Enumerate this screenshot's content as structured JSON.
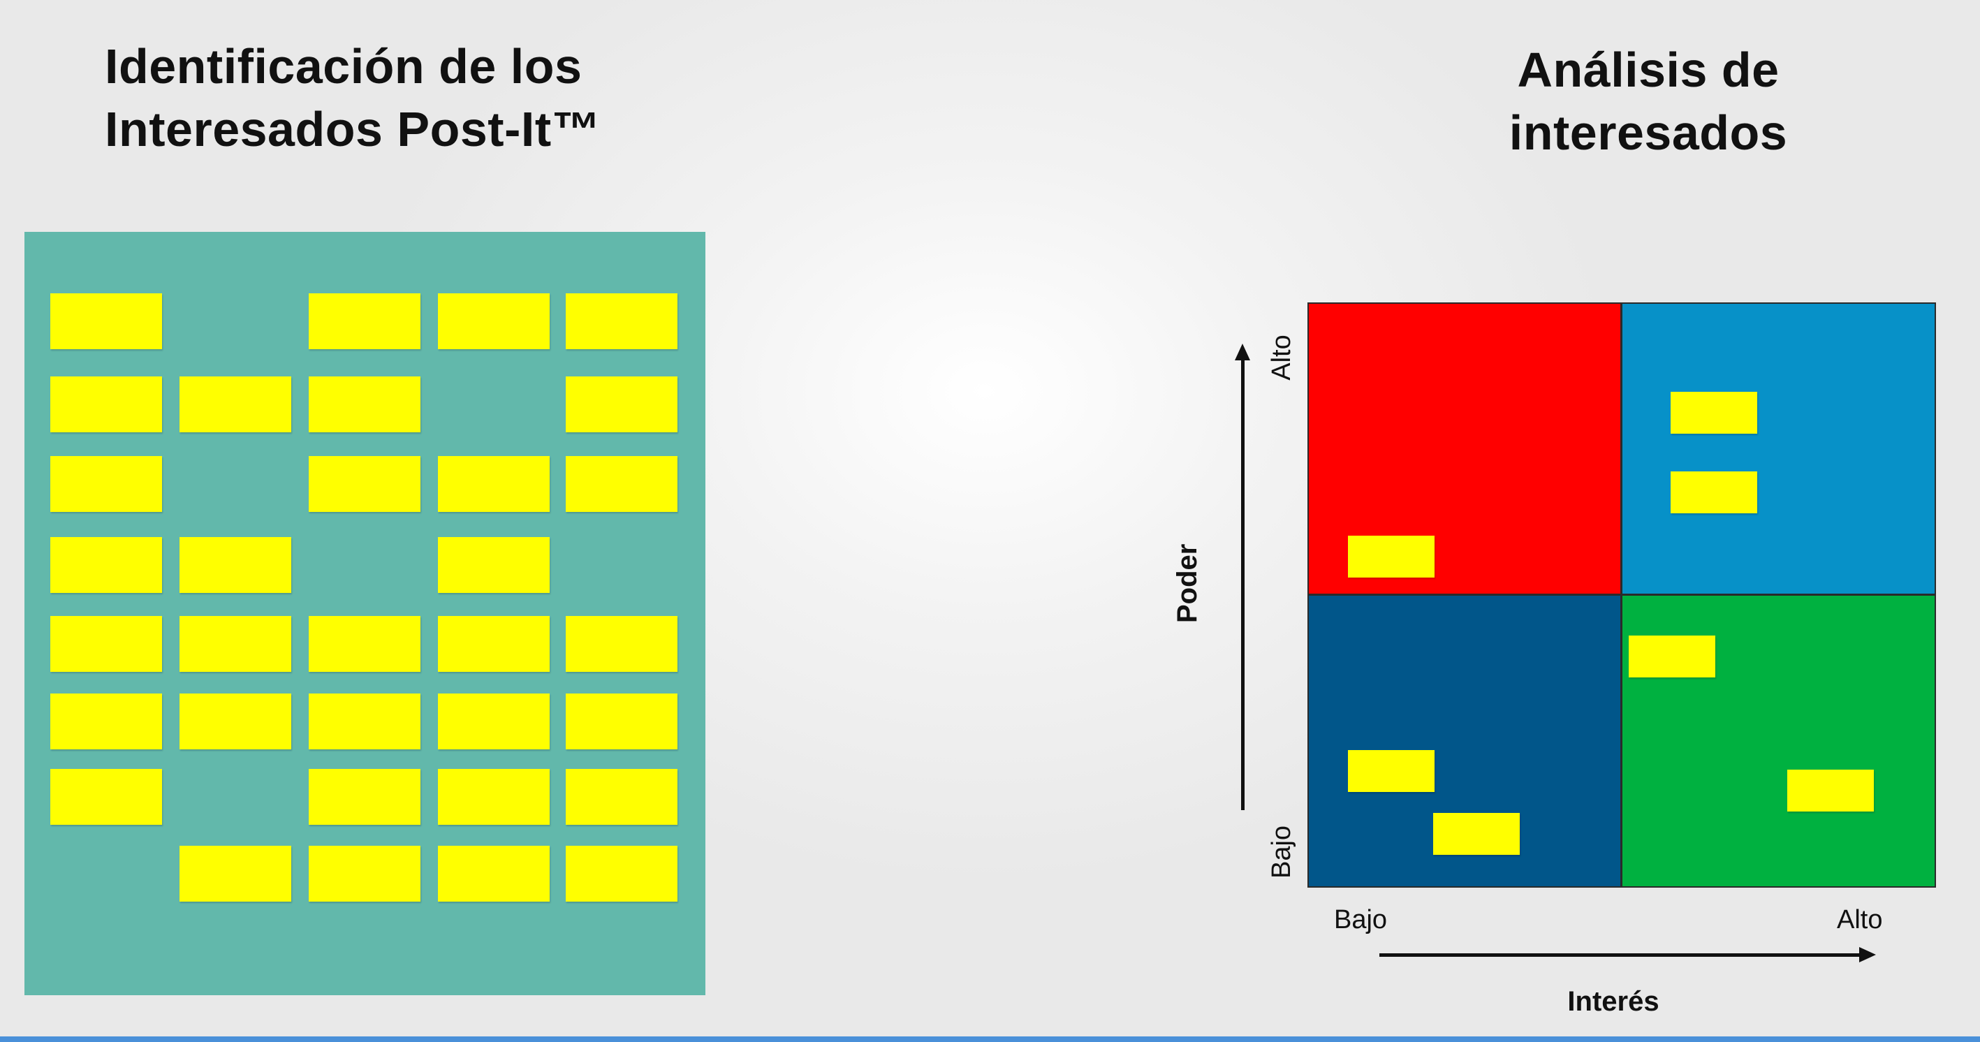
{
  "left_panel": {
    "title_line1": "Identificación de los",
    "title_line2": "Interesados Post-It™",
    "board_color": "#62b8ab",
    "note_color": "#ffff00",
    "grid": {
      "rows": 8,
      "cols": 5,
      "filled": [
        [
          1,
          0,
          1,
          1,
          1
        ],
        [
          1,
          1,
          1,
          0,
          1
        ],
        [
          1,
          0,
          1,
          1,
          1
        ],
        [
          1,
          1,
          0,
          1,
          0
        ],
        [
          1,
          1,
          1,
          1,
          1
        ],
        [
          1,
          1,
          1,
          1,
          1
        ],
        [
          1,
          0,
          1,
          1,
          1
        ],
        [
          0,
          1,
          1,
          1,
          1
        ]
      ]
    }
  },
  "right_panel": {
    "title_line1": "Análisis de",
    "title_line2": "interesados",
    "y_axis": {
      "title": "Poder",
      "high": "Alto",
      "low": "Bajo"
    },
    "x_axis": {
      "title": "Interés",
      "low": "Bajo",
      "high": "Alto"
    },
    "quadrants": [
      {
        "id": "top-left",
        "power": "Alto",
        "interest": "Bajo",
        "color": "#ff0000",
        "notes": 1
      },
      {
        "id": "top-right",
        "power": "Alto",
        "interest": "Alto",
        "color": "#0791c8",
        "notes": 2
      },
      {
        "id": "bottom-left",
        "power": "Bajo",
        "interest": "Bajo",
        "color": "#01568a",
        "notes": 2
      },
      {
        "id": "bottom-right",
        "power": "Bajo",
        "interest": "Alto",
        "color": "#00b140",
        "notes": 2
      }
    ]
  },
  "bottom_bar_color": "#4a90d9"
}
